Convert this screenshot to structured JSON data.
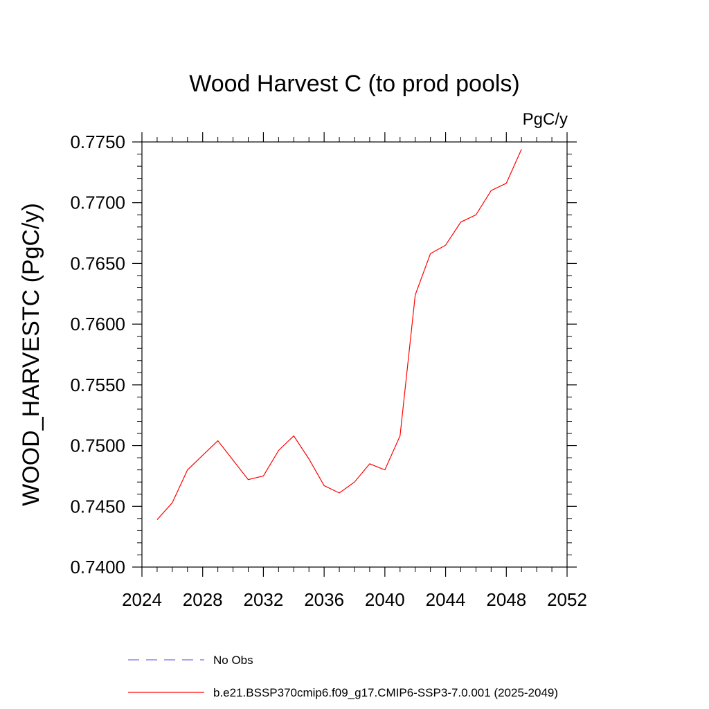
{
  "chart_data": {
    "type": "line",
    "title": "Wood Harvest C (to prod pools)",
    "units_label": "PgC/y",
    "xlabel": "",
    "ylabel": "WOOD_HARVESTC  (PgC/y)",
    "xlim": [
      2024,
      2052
    ],
    "ylim": [
      0.74,
      0.775
    ],
    "xticks": [
      2024,
      2028,
      2032,
      2036,
      2040,
      2044,
      2048,
      2052
    ],
    "yticks": [
      0.74,
      0.745,
      0.75,
      0.755,
      0.76,
      0.765,
      0.77,
      0.775
    ],
    "ytick_labels": [
      "0.7400",
      "0.7450",
      "0.7500",
      "0.7550",
      "0.7600",
      "0.7650",
      "0.7700",
      "0.7750"
    ],
    "grid": false,
    "legend_position": "bottom",
    "series": [
      {
        "name": "b.e21.BSSP370cmip6.f09_g17.CMIP6-SSP3-7.0.001 (2025-2049)",
        "color": "#ff0000",
        "style": "solid",
        "x": [
          2025,
          2026,
          2027,
          2028,
          2029,
          2030,
          2031,
          2032,
          2033,
          2034,
          2035,
          2036,
          2037,
          2038,
          2039,
          2040,
          2041,
          2042,
          2043,
          2044,
          2045,
          2046,
          2047,
          2048,
          2049
        ],
        "y": [
          0.7439,
          0.7453,
          0.748,
          0.7492,
          0.7504,
          0.7488,
          0.7472,
          0.7475,
          0.7496,
          0.7508,
          0.7489,
          0.7467,
          0.7461,
          0.747,
          0.7485,
          0.748,
          0.7508,
          0.7624,
          0.7658,
          0.7665,
          0.7684,
          0.769,
          0.771,
          0.7716,
          0.7744
        ]
      },
      {
        "name": "No Obs",
        "color": "#7070ee",
        "style": "dashed",
        "x": [],
        "y": []
      }
    ]
  }
}
